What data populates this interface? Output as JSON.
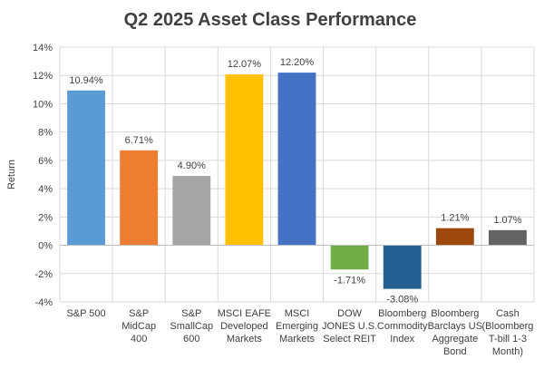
{
  "chart_data": {
    "type": "bar",
    "title": "Q2 2025 Asset Class Performance",
    "xlabel": "",
    "ylabel": "Return",
    "ylim": [
      -4,
      14
    ],
    "yticks": [
      -4,
      -2,
      0,
      2,
      4,
      6,
      8,
      10,
      12,
      14
    ],
    "ytick_labels": [
      "-4%",
      "-2%",
      "0%",
      "2%",
      "4%",
      "6%",
      "8%",
      "10%",
      "12%",
      "14%"
    ],
    "grid": true,
    "legend": "none",
    "categories": [
      [
        "S&P 500"
      ],
      [
        "S&P",
        "MidCap",
        "400"
      ],
      [
        "S&P",
        "SmallCap",
        "600"
      ],
      [
        "MSCI EAFE",
        "Developed",
        "Markets"
      ],
      [
        "MSCI",
        "Emerging",
        "Markets"
      ],
      [
        "DOW",
        "JONES U.S.",
        "Select REIT"
      ],
      [
        "Bloomberg",
        "Commodity",
        "Index"
      ],
      [
        "Bloomberg",
        "Barclays US",
        "Aggregate",
        "Bond"
      ],
      [
        "Cash",
        "(Bloomberg",
        "T-bill 1-3",
        "Month)"
      ]
    ],
    "values": [
      10.94,
      6.71,
      4.9,
      12.07,
      12.2,
      -1.71,
      -3.08,
      1.21,
      1.07
    ],
    "data_labels": [
      "10.94%",
      "6.71%",
      "4.90%",
      "12.07%",
      "12.20%",
      "-1.71%",
      "-3.08%",
      "1.21%",
      "1.07%"
    ],
    "colors": [
      "#5b9bd5",
      "#ed7d31",
      "#a5a5a5",
      "#ffc000",
      "#4472c4",
      "#70ad47",
      "#255e91",
      "#9e480e",
      "#636363"
    ]
  }
}
